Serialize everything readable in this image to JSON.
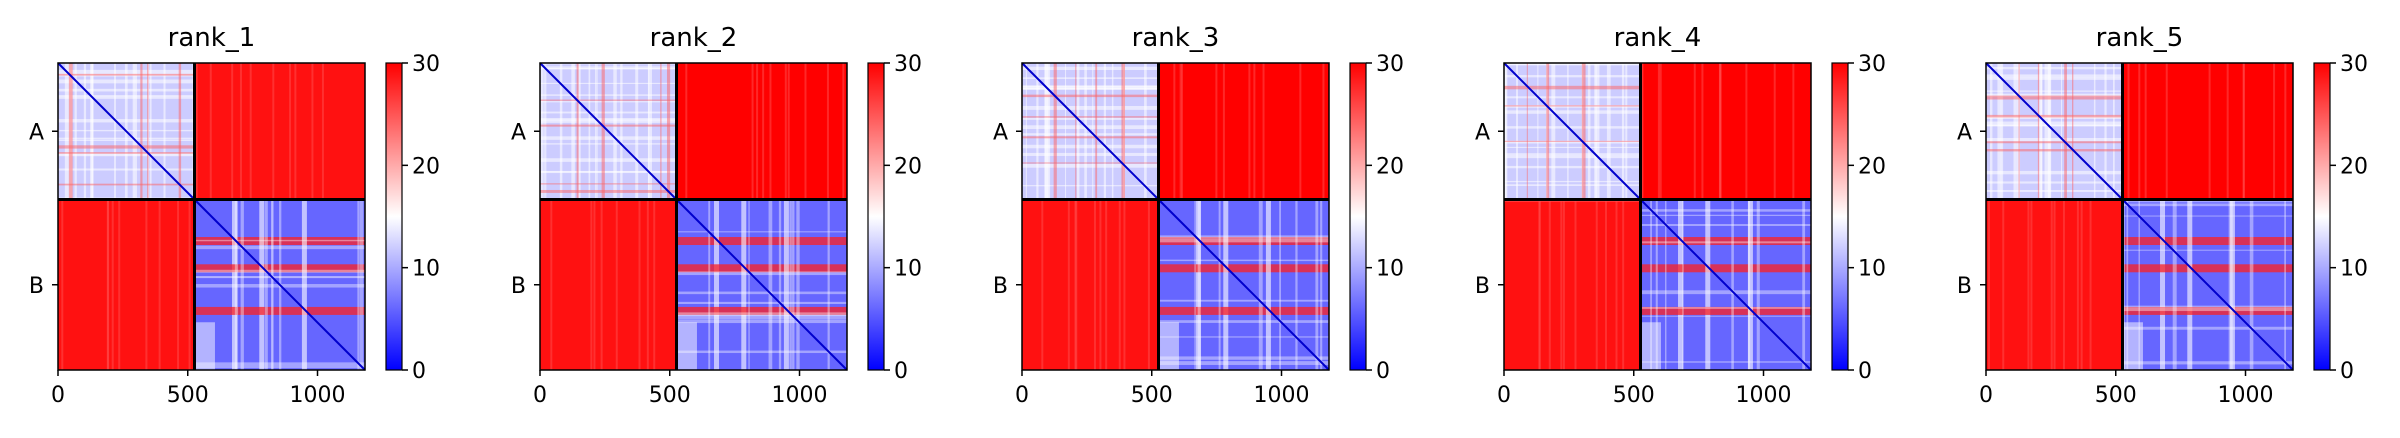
{
  "chart_data": [
    {
      "type": "heatmap",
      "title": "rank_1",
      "x_ticks": [
        "0",
        "500",
        "1000"
      ],
      "x_tick_values": [
        0,
        500,
        1000
      ],
      "xlim": [
        0,
        1183
      ],
      "y_tick_labels": [
        "A",
        "B"
      ],
      "chain_boundary": 526,
      "colorbar": {
        "range": [
          0,
          30
        ],
        "ticks": [
          "0",
          "10",
          "20",
          "30"
        ],
        "colormap": "bwr"
      },
      "blocks": {
        "A_A": 8,
        "A_B": 29,
        "B_A": 29,
        "B_B": 6
      }
    },
    {
      "type": "heatmap",
      "title": "rank_2",
      "x_ticks": [
        "0",
        "500",
        "1000"
      ],
      "x_tick_values": [
        0,
        500,
        1000
      ],
      "xlim": [
        0,
        1183
      ],
      "y_tick_labels": [
        "A",
        "B"
      ],
      "chain_boundary": 526,
      "colorbar": {
        "range": [
          0,
          30
        ],
        "ticks": [
          "0",
          "10",
          "20",
          "30"
        ],
        "colormap": "bwr"
      },
      "blocks": {
        "A_A": 8,
        "A_B": 30,
        "B_A": 29,
        "B_B": 6
      }
    },
    {
      "type": "heatmap",
      "title": "rank_3",
      "x_ticks": [
        "0",
        "500",
        "1000"
      ],
      "x_tick_values": [
        0,
        500,
        1000
      ],
      "xlim": [
        0,
        1183
      ],
      "y_tick_labels": [
        "A",
        "B"
      ],
      "chain_boundary": 526,
      "colorbar": {
        "range": [
          0,
          30
        ],
        "ticks": [
          "0",
          "10",
          "20",
          "30"
        ],
        "colormap": "bwr"
      },
      "blocks": {
        "A_A": 8,
        "A_B": 30,
        "B_A": 29,
        "B_B": 6
      }
    },
    {
      "type": "heatmap",
      "title": "rank_4",
      "x_ticks": [
        "0",
        "500",
        "1000"
      ],
      "x_tick_values": [
        0,
        500,
        1000
      ],
      "xlim": [
        0,
        1183
      ],
      "y_tick_labels": [
        "A",
        "B"
      ],
      "chain_boundary": 526,
      "colorbar": {
        "range": [
          0,
          30
        ],
        "ticks": [
          "0",
          "10",
          "20",
          "30"
        ],
        "colormap": "bwr"
      },
      "blocks": {
        "A_A": 8,
        "A_B": 30,
        "B_A": 29,
        "B_B": 6
      }
    },
    {
      "type": "heatmap",
      "title": "rank_5",
      "x_ticks": [
        "0",
        "500",
        "1000"
      ],
      "x_tick_values": [
        0,
        500,
        1000
      ],
      "xlim": [
        0,
        1183
      ],
      "y_tick_labels": [
        "A",
        "B"
      ],
      "chain_boundary": 526,
      "colorbar": {
        "range": [
          0,
          30
        ],
        "ticks": [
          "0",
          "10",
          "20",
          "30"
        ],
        "colormap": "bwr"
      },
      "blocks": {
        "A_A": 8,
        "A_B": 30,
        "B_A": 29,
        "B_B": 6
      }
    }
  ],
  "colors": {
    "low": "#0000ff",
    "mid": "#ffffff",
    "high": "#ff0000",
    "divider": "#000000",
    "axis": "#000000"
  }
}
